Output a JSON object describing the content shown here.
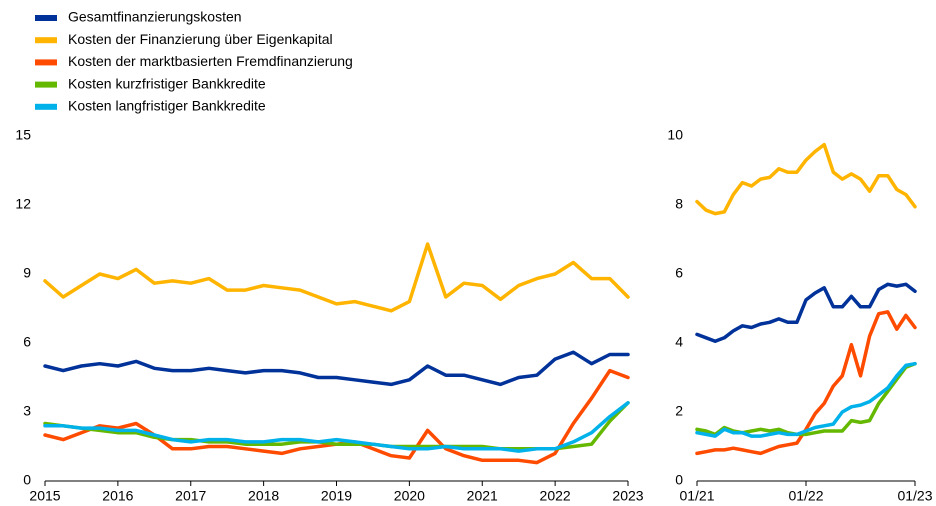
{
  "chart_data": [
    {
      "type": "line",
      "x": [
        2015,
        2015.25,
        2015.5,
        2015.75,
        2016,
        2016.25,
        2016.5,
        2016.75,
        2017,
        2017.25,
        2017.5,
        2017.75,
        2018,
        2018.25,
        2018.5,
        2018.75,
        2019,
        2019.25,
        2019.5,
        2019.75,
        2020,
        2020.25,
        2020.5,
        2020.75,
        2021,
        2021.25,
        2021.5,
        2021.75,
        2022,
        2022.25,
        2022.5,
        2022.75,
        2023
      ],
      "series": [
        {
          "name": "Gesamtfinanzierungskosten",
          "color": "#003299",
          "values": [
            5.0,
            4.8,
            5.0,
            5.1,
            5.0,
            5.2,
            4.9,
            4.8,
            4.8,
            4.9,
            4.8,
            4.7,
            4.8,
            4.8,
            4.7,
            4.5,
            4.5,
            4.4,
            4.3,
            4.2,
            4.4,
            5.0,
            4.6,
            4.6,
            4.4,
            4.2,
            4.5,
            4.6,
            5.3,
            5.6,
            5.1,
            5.5,
            5.5
          ]
        },
        {
          "name": "Kosten der Finanzierung über Eigenkapital",
          "color": "#ffb400",
          "values": [
            8.7,
            8.0,
            8.5,
            9.0,
            8.8,
            9.2,
            8.6,
            8.7,
            8.6,
            8.8,
            8.3,
            8.3,
            8.5,
            8.4,
            8.3,
            8.0,
            7.7,
            7.8,
            7.6,
            7.4,
            7.8,
            10.3,
            8.0,
            8.6,
            8.5,
            7.9,
            8.5,
            8.8,
            9.0,
            9.5,
            8.8,
            8.8,
            8.0
          ]
        },
        {
          "name": "Kosten der marktbasierten Fremdfinanzierung",
          "color": "#ff4b00",
          "values": [
            2.0,
            1.8,
            2.1,
            2.4,
            2.3,
            2.5,
            2.0,
            1.4,
            1.4,
            1.5,
            1.5,
            1.4,
            1.3,
            1.2,
            1.4,
            1.5,
            1.6,
            1.7,
            1.4,
            1.1,
            1.0,
            2.2,
            1.4,
            1.1,
            0.9,
            0.9,
            0.9,
            0.8,
            1.2,
            2.5,
            3.6,
            4.8,
            4.5
          ]
        },
        {
          "name": "Kosten kurzfristiger Bankkredite",
          "color": "#65b800",
          "values": [
            2.5,
            2.4,
            2.3,
            2.2,
            2.1,
            2.1,
            1.9,
            1.8,
            1.8,
            1.7,
            1.7,
            1.6,
            1.6,
            1.6,
            1.7,
            1.7,
            1.6,
            1.6,
            1.6,
            1.5,
            1.5,
            1.5,
            1.5,
            1.5,
            1.5,
            1.4,
            1.4,
            1.4,
            1.4,
            1.5,
            1.6,
            2.6,
            3.4
          ]
        },
        {
          "name": "Kosten langfristiger Bankkredite",
          "color": "#00b1ea",
          "values": [
            2.4,
            2.4,
            2.3,
            2.3,
            2.2,
            2.2,
            2.0,
            1.8,
            1.7,
            1.8,
            1.8,
            1.7,
            1.7,
            1.8,
            1.8,
            1.7,
            1.8,
            1.7,
            1.6,
            1.5,
            1.4,
            1.4,
            1.5,
            1.4,
            1.4,
            1.4,
            1.3,
            1.4,
            1.4,
            1.7,
            2.1,
            2.8,
            3.4
          ]
        }
      ],
      "xlim": [
        2015,
        2023
      ],
      "xticks": [
        2015,
        2016,
        2017,
        2018,
        2019,
        2020,
        2021,
        2022,
        2023
      ],
      "ylim": [
        0,
        15
      ],
      "yticks": [
        0,
        3,
        6,
        9,
        12,
        15
      ]
    },
    {
      "type": "line",
      "x": [
        0,
        1,
        2,
        3,
        4,
        5,
        6,
        7,
        8,
        9,
        10,
        11,
        12,
        13,
        14,
        15,
        16,
        17,
        18,
        19,
        20,
        21,
        22,
        23,
        24
      ],
      "series": [
        {
          "color": "#003299",
          "values": [
            4.25,
            4.15,
            4.05,
            4.15,
            4.35,
            4.5,
            4.45,
            4.55,
            4.6,
            4.7,
            4.6,
            4.6,
            5.25,
            5.45,
            5.6,
            5.05,
            5.05,
            5.35,
            5.05,
            5.05,
            5.55,
            5.7,
            5.65,
            5.7,
            5.5
          ]
        },
        {
          "color": "#ffb400",
          "values": [
            8.1,
            7.85,
            7.75,
            7.8,
            8.3,
            8.65,
            8.55,
            8.75,
            8.8,
            9.05,
            8.95,
            8.95,
            9.3,
            9.55,
            9.75,
            8.95,
            8.75,
            8.9,
            8.75,
            8.4,
            8.85,
            8.85,
            8.45,
            8.3,
            7.95
          ]
        },
        {
          "color": "#ff4b00",
          "values": [
            0.8,
            0.85,
            0.9,
            0.9,
            0.95,
            0.9,
            0.85,
            0.8,
            0.9,
            1.0,
            1.05,
            1.1,
            1.5,
            1.95,
            2.25,
            2.75,
            3.05,
            3.95,
            3.05,
            4.2,
            4.85,
            4.9,
            4.4,
            4.8,
            4.45
          ]
        },
        {
          "color": "#65b800",
          "values": [
            1.5,
            1.45,
            1.35,
            1.55,
            1.45,
            1.4,
            1.45,
            1.5,
            1.45,
            1.5,
            1.4,
            1.35,
            1.35,
            1.4,
            1.45,
            1.45,
            1.45,
            1.75,
            1.7,
            1.75,
            2.25,
            2.6,
            2.95,
            3.3,
            3.4
          ]
        },
        {
          "color": "#00b1ea",
          "values": [
            1.4,
            1.35,
            1.3,
            1.5,
            1.4,
            1.4,
            1.3,
            1.3,
            1.35,
            1.4,
            1.35,
            1.35,
            1.45,
            1.55,
            1.6,
            1.65,
            2.0,
            2.15,
            2.2,
            2.3,
            2.5,
            2.7,
            3.05,
            3.35,
            3.4
          ]
        }
      ],
      "xlim": [
        0,
        24
      ],
      "xticks": [
        {
          "value": 0,
          "label": "01/21"
        },
        {
          "value": 12,
          "label": "01/22"
        },
        {
          "value": 24,
          "label": "01/23"
        }
      ],
      "ylim": [
        0,
        10
      ],
      "yticks": [
        0,
        2,
        4,
        6,
        8,
        10
      ]
    }
  ]
}
